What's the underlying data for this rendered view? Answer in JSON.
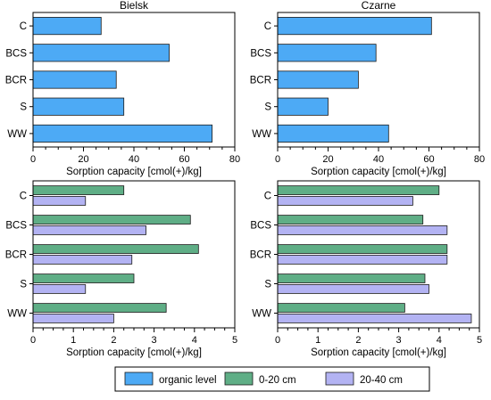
{
  "colors": {
    "organic": "#4daaf5",
    "d0_20": "#5fae86",
    "d20_40": "#b3b3f3",
    "axis": "#000000",
    "bar_stroke": "#1a1a1a"
  },
  "legend": {
    "items": [
      {
        "label": "organic level",
        "series": "organic"
      },
      {
        "label": "0-20 cm",
        "series": "d0_20"
      },
      {
        "label": "20-40 cm",
        "series": "d20_40"
      }
    ]
  },
  "chart_data": [
    {
      "type": "bar",
      "orientation": "horizontal",
      "title": "Bielsk",
      "xlabel": "Sorption capacity [cmol(+)/kg]",
      "categories": [
        "C",
        "BCS",
        "BCR",
        "S",
        "WW"
      ],
      "xlim": [
        0,
        80
      ],
      "xticks": [
        0,
        20,
        40,
        60,
        80
      ],
      "grid": false,
      "series": [
        {
          "key": "organic",
          "values": [
            27,
            54,
            33,
            36,
            71
          ]
        }
      ]
    },
    {
      "type": "bar",
      "orientation": "horizontal",
      "title": "Czarne",
      "xlabel": "Sorption capacity [cmol(+)/kg]",
      "categories": [
        "C",
        "BCS",
        "BCR",
        "S",
        "WW"
      ],
      "xlim": [
        0,
        80
      ],
      "xticks": [
        0,
        20,
        40,
        60,
        80
      ],
      "grid": false,
      "series": [
        {
          "key": "organic",
          "values": [
            61,
            39,
            32,
            20,
            44
          ]
        }
      ]
    },
    {
      "type": "bar",
      "orientation": "horizontal",
      "title": "",
      "xlabel": "Sorption capacity [cmol(+)/kg]",
      "categories": [
        "C",
        "BCS",
        "BCR",
        "S",
        "WW"
      ],
      "xlim": [
        0,
        5
      ],
      "xticks": [
        0,
        1,
        2,
        3,
        4,
        5
      ],
      "grid": false,
      "series": [
        {
          "key": "d0_20",
          "values": [
            2.25,
            3.9,
            4.1,
            2.5,
            3.3
          ]
        },
        {
          "key": "d20_40",
          "values": [
            1.3,
            2.8,
            2.45,
            1.3,
            2.0
          ]
        }
      ]
    },
    {
      "type": "bar",
      "orientation": "horizontal",
      "title": "",
      "xlabel": "Sorption capacity [cmol(+)/kg]",
      "categories": [
        "C",
        "BCS",
        "BCR",
        "S",
        "WW"
      ],
      "xlim": [
        0,
        5
      ],
      "xticks": [
        0,
        1,
        2,
        3,
        4,
        5
      ],
      "grid": false,
      "series": [
        {
          "key": "d0_20",
          "values": [
            4.0,
            3.6,
            4.2,
            3.65,
            3.15
          ]
        },
        {
          "key": "d20_40",
          "values": [
            3.35,
            4.2,
            4.2,
            3.75,
            4.8
          ]
        }
      ]
    }
  ]
}
